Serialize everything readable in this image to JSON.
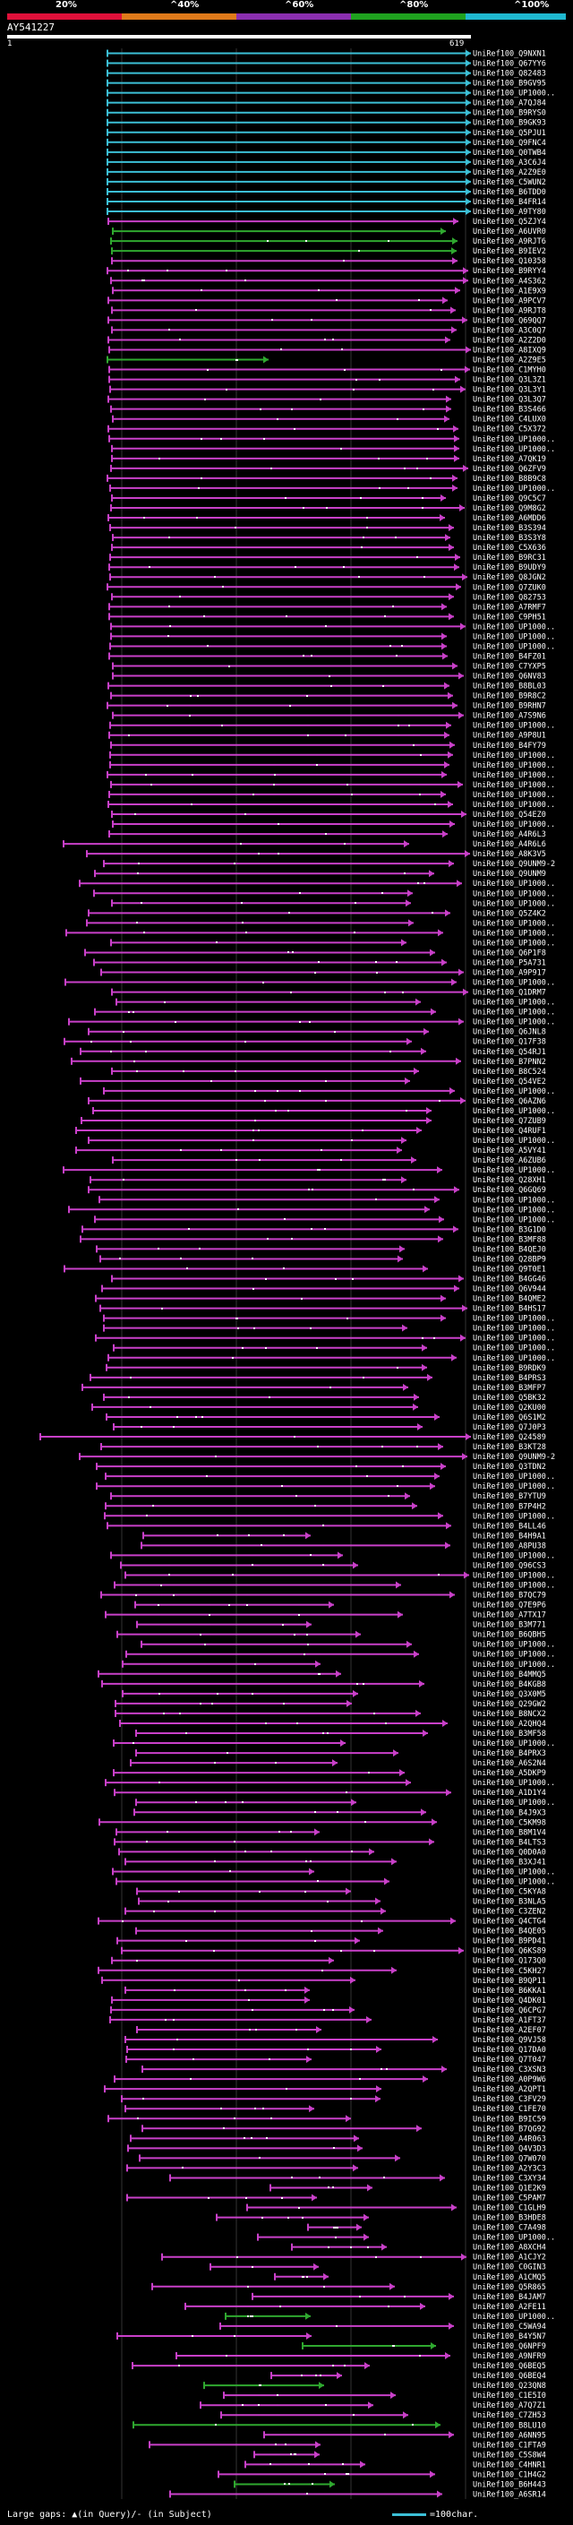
{
  "scale": {
    "labels": [
      "20%",
      "^40%",
      "^60%",
      "^80%",
      "^100%"
    ],
    "colors": [
      "#e0103a",
      "#e07a1a",
      "#8b2fb0",
      "#1fa21f",
      "#1fb8d0"
    ]
  },
  "query": {
    "name": "AY541227",
    "start": "1",
    "end": "619"
  },
  "colors": {
    "cyan": "#3cbfd6",
    "green": "#2fa82f",
    "magenta": "#c940c9",
    "grid": "#333333"
  },
  "hit_labels": [
    "UniRef100_Q9NXN1",
    "UniRef100_Q67YY6",
    "UniRef100_Q82483",
    "UniRef100_B9GV95",
    "UniRef100_UP1000..",
    "UniRef100_A7QJ84",
    "UniRef100_B9RYS0",
    "UniRef100_B9GK93",
    "UniRef100_Q5PJU1",
    "UniRef100_Q9FNC4",
    "UniRef100_Q0TWB4",
    "UniRef100_A3C6J4",
    "UniRef100_A2Z9E0",
    "UniRef100_C5WUN2",
    "UniRef100_B6TDD0",
    "UniRef100_B4FR14",
    "UniRef100_A9TY80",
    "UniRef100_Q5ZJY4",
    "UniRef100_A6UVR0",
    "UniRef100_A9RJT6",
    "UniRef100_B9IEV2",
    "UniRef100_Q10358",
    "UniRef100_B9RYY4",
    "UniRef100_A4S362",
    "UniRef100_A1E9X9",
    "UniRef100_A9PCV7",
    "UniRef100_A9RJT8",
    "UniRef100_Q69QQ7",
    "UniRef100_A3C0Q7",
    "UniRef100_A2Z2D0",
    "UniRef100_A8IXQ9",
    "UniRef100_A2Z9E5",
    "UniRef100_C1MYH0",
    "UniRef100_Q3L3Z1",
    "UniRef100_Q3L3Y1",
    "UniRef100_Q3L3Q7",
    "UniRef100_B3S466",
    "UniRef100_C4LUX0",
    "UniRef100_C5X372",
    "UniRef100_UP1000..",
    "UniRef100_UP1000..",
    "UniRef100_A7QK19",
    "UniRef100_Q6ZFV9",
    "UniRef100_B8B9C8",
    "UniRef100_UP1000..",
    "UniRef100_Q9C5C7",
    "UniRef100_Q9M8G2",
    "UniRef100_A6MDD6",
    "UniRef100_B3S394",
    "UniRef100_B3S3Y8",
    "UniRef100_C5X636",
    "UniRef100_B9RC31",
    "UniRef100_B9UDY9",
    "UniRef100_Q8JGN2",
    "UniRef100_Q7ZUK0",
    "UniRef100_Q82753",
    "UniRef100_A7RMF7",
    "UniRef100_C9PH51",
    "UniRef100_UP1000..",
    "UniRef100_UP1000..",
    "UniRef100_UP1000..",
    "UniRef100_B4FZ01",
    "UniRef100_C7YXP5",
    "UniRef100_Q6NV83",
    "UniRef100_B8BL03",
    "UniRef100_B9R8C2",
    "UniRef100_B9RHN7",
    "UniRef100_A7S9N6",
    "UniRef100_UP1000..",
    "UniRef100_A9P8U1",
    "UniRef100_B4FY79",
    "UniRef100_UP1000..",
    "UniRef100_UP1000..",
    "UniRef100_UP1000..",
    "UniRef100_UP1000..",
    "UniRef100_UP1000..",
    "UniRef100_UP1000..",
    "UniRef100_Q54EZ0",
    "UniRef100_UP1000..",
    "UniRef100_A4R6L3",
    "UniRef100_A4R6L6",
    "UniRef100_A8K3V5",
    "UniRef100_Q9UNM9-2",
    "UniRef100_Q9UNM9",
    "UniRef100_UP1000..",
    "UniRef100_UP1000..",
    "UniRef100_UP1000..",
    "UniRef100_Q5Z4K2",
    "UniRef100_UP1000..",
    "UniRef100_UP1000..",
    "UniRef100_UP1000..",
    "UniRef100_Q6P1F8",
    "UniRef100_P5A731",
    "UniRef100_A9P917",
    "UniRef100_UP1000..",
    "UniRef100_Q1DRM7",
    "UniRef100_UP1000..",
    "UniRef100_UP1000..",
    "UniRef100_UP1000..",
    "UniRef100_Q6JNL8",
    "UniRef100_Q17F38",
    "UniRef100_Q54RJ1",
    "UniRef100_B7PNN2",
    "UniRef100_B8C524",
    "UniRef100_Q54VE2",
    "UniRef100_UP1000..",
    "UniRef100_Q6AZN6",
    "UniRef100_UP1000..",
    "UniRef100_Q7ZUB9",
    "UniRef100_Q4RUF1",
    "UniRef100_UP1000..",
    "UniRef100_A5VY41",
    "UniRef100_A6ZUB6",
    "UniRef100_UP1000..",
    "UniRef100_Q28XH1",
    "UniRef100_Q6GQ69",
    "UniRef100_UP1000..",
    "UniRef100_UP1000..",
    "UniRef100_UP1000..",
    "UniRef100_B3G1D0",
    "UniRef100_B3MF88",
    "UniRef100_B4QEJ0",
    "UniRef100_Q28BP9",
    "UniRef100_Q9T0E1",
    "UniRef100_B4GG46",
    "UniRef100_Q6V944",
    "UniRef100_B4QME2",
    "UniRef100_B4HS17",
    "UniRef100_UP1000..",
    "UniRef100_UP1000..",
    "UniRef100_UP1000..",
    "UniRef100_UP1000..",
    "UniRef100_UP1000..",
    "UniRef100_B9RDK9",
    "UniRef100_B4PRS3",
    "UniRef100_B3MFP7",
    "UniRef100_Q5BK32",
    "UniRef100_Q2KU00",
    "UniRef100_Q6S1M2",
    "UniRef100_Q7J0P3",
    "UniRef100_Q24589",
    "UniRef100_B3KT28",
    "UniRef100_Q9UNM9-2",
    "UniRef100_Q3TDN2",
    "UniRef100_UP1000..",
    "UniRef100_UP1000..",
    "UniRef100_B7YTU9",
    "UniRef100_B7P4H2",
    "UniRef100_UP1000..",
    "UniRef100_B4LL46",
    "UniRef100_B4H9A1",
    "UniRef100_A8PU38",
    "UniRef100_UP1000..",
    "UniRef100_Q96CS3",
    "UniRef100_UP1000..",
    "UniRef100_UP1000..",
    "UniRef100_B7QC79",
    "UniRef100_Q7E9P6",
    "UniRef100_A7TX17",
    "UniRef100_B3M771",
    "UniRef100_B6QBH5",
    "UniRef100_UP1000..",
    "UniRef100_UP1000..",
    "UniRef100_UP1000..",
    "UniRef100_B4MMQ5",
    "UniRef100_B4KGB8",
    "UniRef100_Q3X0M5",
    "UniRef100_Q29GW2",
    "UniRef100_B8NCX2",
    "UniRef100_A2QHQ4",
    "UniRef100_B3MF58",
    "UniRef100_UP1000..",
    "UniRef100_B4PRX3",
    "UniRef100_A6S2N4",
    "UniRef100_A5DKP9",
    "UniRef100_UP1000..",
    "UniRef100_A1D1Y4",
    "UniRef100_UP1000..",
    "UniRef100_B4J9X3",
    "UniRef100_C5KM98",
    "UniRef100_B8M1V4",
    "UniRef100_B4LTS3",
    "UniRef100_Q0D0A0",
    "UniRef100_B3XJ41",
    "UniRef100_UP1000..",
    "UniRef100_UP1000..",
    "UniRef100_C5KYA8",
    "UniRef100_B3NLA5",
    "UniRef100_C3ZEN2",
    "UniRef100_Q4CTG4",
    "UniRef100_B4QE05",
    "UniRef100_B9PD41",
    "UniRef100_Q6KS89",
    "UniRef100_Q173Q0",
    "UniRef100_C5KH27",
    "UniRef100_B9QP11",
    "UniRef100_B6KKA1",
    "UniRef100_Q4DK01",
    "UniRef100_Q6CPG7",
    "UniRef100_A1FT37",
    "UniRef100_A2EF07",
    "UniRef100_Q9VJ58",
    "UniRef100_Q17DA0",
    "UniRef100_Q7T047",
    "UniRef100_C3XSN3",
    "UniRef100_A0P9W6",
    "UniRef100_A2QPT1",
    "UniRef100_C3FV29",
    "UniRef100_C1FE70",
    "UniRef100_B9IC59",
    "UniRef100_B7QG92",
    "UniRef100_A4R063",
    "UniRef100_Q4V3D3",
    "UniRef100_Q7W070",
    "UniRef100_A2Y3C3",
    "UniRef100_C3XY34",
    "UniRef100_Q1E2K9",
    "UniRef100_C5PAM7",
    "UniRef100_C1GLH9",
    "UniRef100_B3HDE8",
    "UniRef100_C7A498",
    "UniRef100_UP1000..",
    "UniRef100_A8XCH4",
    "UniRef100_A1CJY2",
    "UniRef100_C0GIN3",
    "UniRef100_A1CMQ5",
    "UniRef100_Q5R865",
    "UniRef100_B4JAM7",
    "UniRef100_A2FE11",
    "UniRef100_UP1000..",
    "UniRef100_C5WA94",
    "UniRef100_B4Y5N7",
    "UniRef100_Q6NPF9",
    "UniRef100_A9NFR9",
    "UniRef100_Q6BEQ5",
    "UniRef100_Q6BEQ4",
    "UniRef100_Q23QN8",
    "UniRef100_C1E5I0",
    "UniRef100_A7Q7Z1",
    "UniRef100_C7ZH53",
    "UniRef100_B8LU10",
    "UniRef100_A6NN95",
    "UniRef100_C1FTA9",
    "UniRef100_C5S8W4",
    "UniRef100_C4HNR1",
    "UniRef100_C1H4G2",
    "UniRef100_B6H443",
    "UniRef100_A6SR14"
  ],
  "footer": {
    "text": "Large gaps: ▲(in Query)/- (in Subject)",
    "key_label": "=100char."
  }
}
